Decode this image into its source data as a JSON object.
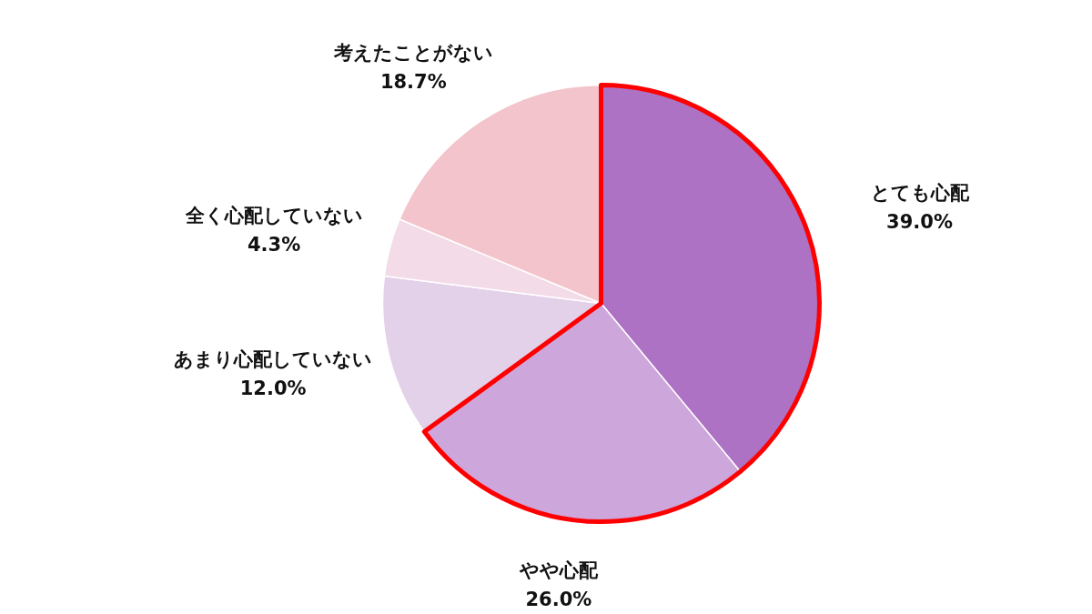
{
  "chart_data": {
    "type": "pie",
    "categories": [
      "とても心配",
      "やや心配",
      "あまり心配していない",
      "全く心配していない",
      "考えたことがない"
    ],
    "values": [
      39.0,
      26.0,
      12.0,
      4.3,
      18.7
    ],
    "colors": [
      "#ae72c4",
      "#cda6db",
      "#e3d0e9",
      "#f3dbe8",
      "#f3c4cc"
    ],
    "value_labels": [
      "39.0%",
      "26.0%",
      "12.0%",
      "4.3%",
      "18.7%"
    ]
  }
}
